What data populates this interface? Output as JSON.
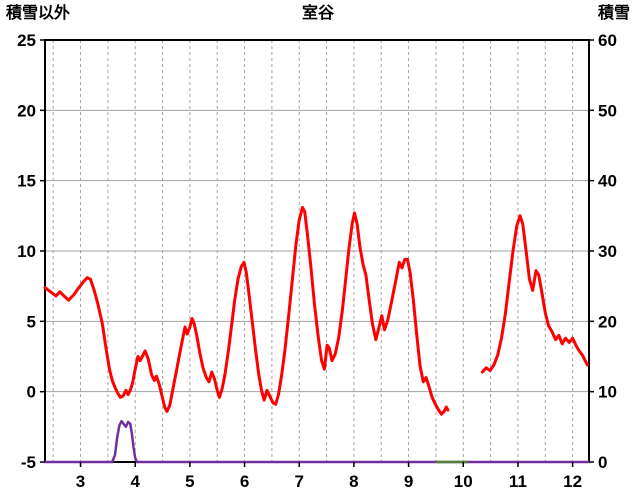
{
  "chart_data": {
    "type": "line",
    "title": "室谷",
    "left_axis": {
      "label": "積雪以外",
      "min": -5,
      "max": 25,
      "ticks": [
        -5,
        0,
        5,
        10,
        15,
        20,
        25
      ]
    },
    "right_axis": {
      "label": "積雪",
      "min": 0,
      "max": 60,
      "ticks": [
        0,
        10,
        20,
        30,
        40,
        50,
        60
      ]
    },
    "x_axis": {
      "min": 2.35,
      "max": 12.3,
      "tick_labels": [
        3,
        4,
        5,
        6,
        7,
        8,
        9,
        10,
        11,
        12
      ],
      "gridline_step": 0.5,
      "grid_style": "dashed"
    },
    "grid": true,
    "legend": false,
    "series": [
      {
        "name": "purple",
        "axis": "right",
        "color": "#7030A0",
        "width": 2.5,
        "segments": [
          [
            [
              2.35,
              0
            ],
            [
              3.58,
              0
            ],
            [
              3.63,
              1.0
            ],
            [
              3.67,
              3.5
            ],
            [
              3.71,
              5.2
            ],
            [
              3.75,
              5.8
            ],
            [
              3.79,
              5.4
            ],
            [
              3.83,
              5.0
            ],
            [
              3.87,
              5.7
            ],
            [
              3.91,
              5.4
            ],
            [
              3.94,
              4.0
            ],
            [
              3.97,
              2.0
            ],
            [
              4.0,
              0.6
            ],
            [
              4.03,
              0
            ],
            [
              12.3,
              0
            ]
          ]
        ]
      },
      {
        "name": "green",
        "axis": "right",
        "color": "#548235",
        "width": 2.5,
        "segments": [
          [
            [
              9.52,
              0
            ],
            [
              10.06,
              0
            ]
          ]
        ]
      },
      {
        "name": "red",
        "axis": "left",
        "color": "#FF0000",
        "width": 3,
        "segments": [
          [
            [
              2.35,
              7.4
            ],
            [
              2.45,
              7.1
            ],
            [
              2.55,
              6.8
            ],
            [
              2.62,
              7.1
            ],
            [
              2.7,
              6.8
            ],
            [
              2.78,
              6.5
            ],
            [
              2.88,
              6.9
            ],
            [
              2.95,
              7.3
            ],
            [
              3.05,
              7.8
            ],
            [
              3.12,
              8.1
            ],
            [
              3.18,
              8.0
            ],
            [
              3.25,
              7.2
            ],
            [
              3.32,
              6.2
            ],
            [
              3.4,
              4.8
            ],
            [
              3.47,
              3.0
            ],
            [
              3.53,
              1.6
            ],
            [
              3.58,
              0.8
            ],
            [
              3.63,
              0.3
            ],
            [
              3.68,
              -0.1
            ],
            [
              3.73,
              -0.4
            ],
            [
              3.78,
              -0.3
            ],
            [
              3.83,
              0.1
            ],
            [
              3.87,
              -0.2
            ],
            [
              3.91,
              0.1
            ],
            [
              3.95,
              0.6
            ],
            [
              4.0,
              1.6
            ],
            [
              4.05,
              2.5
            ],
            [
              4.09,
              2.2
            ],
            [
              4.13,
              2.5
            ],
            [
              4.18,
              2.9
            ],
            [
              4.24,
              2.3
            ],
            [
              4.3,
              1.2
            ],
            [
              4.35,
              0.8
            ],
            [
              4.39,
              1.1
            ],
            [
              4.44,
              0.5
            ],
            [
              4.49,
              -0.3
            ],
            [
              4.54,
              -1.1
            ],
            [
              4.58,
              -1.4
            ],
            [
              4.63,
              -1.0
            ],
            [
              4.68,
              0.0
            ],
            [
              4.74,
              1.2
            ],
            [
              4.8,
              2.4
            ],
            [
              4.86,
              3.6
            ],
            [
              4.91,
              4.6
            ],
            [
              4.95,
              4.1
            ],
            [
              5.0,
              4.6
            ],
            [
              5.04,
              5.2
            ],
            [
              5.08,
              4.8
            ],
            [
              5.13,
              3.9
            ],
            [
              5.18,
              2.8
            ],
            [
              5.24,
              1.7
            ],
            [
              5.3,
              1.0
            ],
            [
              5.35,
              0.7
            ],
            [
              5.4,
              1.4
            ],
            [
              5.45,
              0.9
            ],
            [
              5.5,
              0.1
            ],
            [
              5.54,
              -0.4
            ],
            [
              5.59,
              0.2
            ],
            [
              5.64,
              1.2
            ],
            [
              5.7,
              2.8
            ],
            [
              5.76,
              4.6
            ],
            [
              5.82,
              6.5
            ],
            [
              5.88,
              8.0
            ],
            [
              5.94,
              8.9
            ],
            [
              5.99,
              9.2
            ],
            [
              6.03,
              8.5
            ],
            [
              6.08,
              7.0
            ],
            [
              6.14,
              5.0
            ],
            [
              6.2,
              3.0
            ],
            [
              6.26,
              1.2
            ],
            [
              6.31,
              0.1
            ],
            [
              6.36,
              -0.6
            ],
            [
              6.41,
              0.1
            ],
            [
              6.46,
              -0.3
            ],
            [
              6.52,
              -0.8
            ],
            [
              6.57,
              -0.9
            ],
            [
              6.62,
              -0.2
            ],
            [
              6.68,
              1.2
            ],
            [
              6.74,
              3.0
            ],
            [
              6.81,
              5.5
            ],
            [
              6.88,
              8.2
            ],
            [
              6.94,
              10.5
            ],
            [
              7.0,
              12.2
            ],
            [
              7.06,
              13.1
            ],
            [
              7.1,
              12.8
            ],
            [
              7.15,
              11.2
            ],
            [
              7.21,
              9.0
            ],
            [
              7.28,
              6.2
            ],
            [
              7.35,
              3.8
            ],
            [
              7.41,
              2.2
            ],
            [
              7.46,
              1.6
            ],
            [
              7.51,
              3.3
            ],
            [
              7.55,
              3.1
            ],
            [
              7.6,
              2.2
            ],
            [
              7.66,
              2.7
            ],
            [
              7.72,
              3.8
            ],
            [
              7.79,
              5.8
            ],
            [
              7.85,
              8.0
            ],
            [
              7.91,
              10.2
            ],
            [
              7.97,
              12.0
            ],
            [
              8.01,
              12.7
            ],
            [
              8.06,
              11.9
            ],
            [
              8.11,
              10.3
            ],
            [
              8.17,
              9.0
            ],
            [
              8.22,
              8.3
            ],
            [
              8.28,
              6.5
            ],
            [
              8.34,
              4.8
            ],
            [
              8.4,
              3.7
            ],
            [
              8.46,
              4.6
            ],
            [
              8.51,
              5.4
            ],
            [
              8.56,
              4.4
            ],
            [
              8.62,
              5.1
            ],
            [
              8.69,
              6.4
            ],
            [
              8.76,
              7.8
            ],
            [
              8.83,
              9.2
            ],
            [
              8.88,
              8.8
            ],
            [
              8.93,
              9.4
            ],
            [
              8.98,
              9.4
            ],
            [
              9.03,
              8.4
            ],
            [
              9.09,
              6.4
            ],
            [
              9.15,
              4.0
            ],
            [
              9.21,
              1.8
            ],
            [
              9.27,
              0.7
            ],
            [
              9.32,
              1.0
            ],
            [
              9.37,
              0.4
            ],
            [
              9.43,
              -0.4
            ],
            [
              9.49,
              -0.9
            ],
            [
              9.55,
              -1.3
            ],
            [
              9.6,
              -1.6
            ],
            [
              9.65,
              -1.4
            ],
            [
              9.69,
              -1.1
            ],
            [
              9.72,
              -1.3
            ]
          ],
          [
            [
              10.35,
              1.4
            ],
            [
              10.42,
              1.7
            ],
            [
              10.49,
              1.5
            ],
            [
              10.56,
              1.9
            ],
            [
              10.63,
              2.6
            ],
            [
              10.7,
              3.8
            ],
            [
              10.77,
              5.5
            ],
            [
              10.84,
              7.8
            ],
            [
              10.91,
              10.0
            ],
            [
              10.98,
              11.8
            ],
            [
              11.04,
              12.5
            ],
            [
              11.09,
              11.9
            ],
            [
              11.15,
              10.0
            ],
            [
              11.21,
              8.0
            ],
            [
              11.27,
              7.2
            ],
            [
              11.33,
              8.6
            ],
            [
              11.38,
              8.3
            ],
            [
              11.44,
              7.0
            ],
            [
              11.5,
              5.6
            ],
            [
              11.56,
              4.7
            ],
            [
              11.62,
              4.3
            ],
            [
              11.69,
              3.7
            ],
            [
              11.75,
              4.0
            ],
            [
              11.81,
              3.4
            ],
            [
              11.87,
              3.8
            ],
            [
              11.94,
              3.5
            ],
            [
              12.0,
              3.8
            ],
            [
              12.06,
              3.3
            ],
            [
              12.12,
              2.9
            ],
            [
              12.18,
              2.6
            ],
            [
              12.23,
              2.2
            ],
            [
              12.27,
              1.9
            ]
          ]
        ]
      }
    ]
  },
  "colors": {
    "gridline": "#a3a3a3",
    "plot_border": "#000000",
    "series_red": "#FF0000",
    "series_purple": "#7030A0",
    "series_green": "#548235"
  }
}
